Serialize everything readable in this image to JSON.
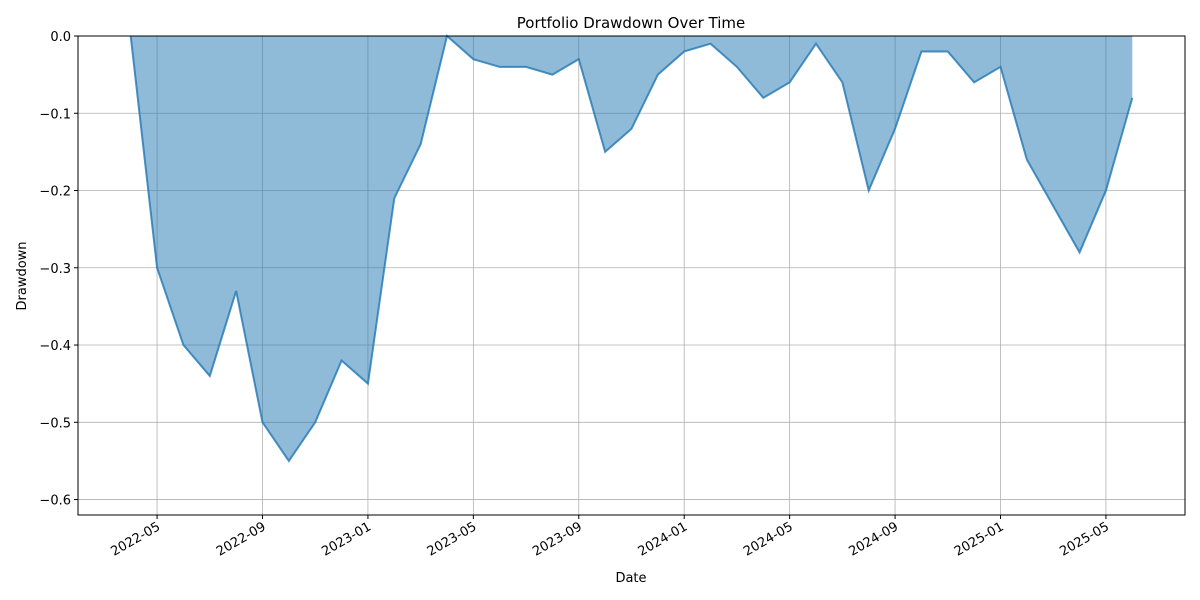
{
  "chart_data": {
    "type": "area",
    "title": "Portfolio Drawdown Over Time",
    "x_label": "Date",
    "y_label": "Drawdown",
    "x": [
      "2022-04",
      "2022-05",
      "2022-06",
      "2022-07",
      "2022-08",
      "2022-09",
      "2022-10",
      "2022-11",
      "2022-12",
      "2023-01",
      "2023-02",
      "2023-03",
      "2023-04",
      "2023-05",
      "2023-06",
      "2023-07",
      "2023-08",
      "2023-09",
      "2023-10",
      "2023-11",
      "2023-12",
      "2024-01",
      "2024-02",
      "2024-03",
      "2024-04",
      "2024-05",
      "2024-06",
      "2024-07",
      "2024-08",
      "2024-09",
      "2024-10",
      "2024-11",
      "2024-12",
      "2025-01",
      "2025-02",
      "2025-03",
      "2025-04",
      "2025-05",
      "2025-06"
    ],
    "values": [
      0,
      -0.3,
      -0.4,
      -0.44,
      -0.33,
      -0.5,
      -0.55,
      -0.5,
      -0.42,
      -0.45,
      -0.21,
      -0.14,
      0,
      -0.03,
      -0.04,
      -0.04,
      -0.05,
      -0.03,
      -0.15,
      -0.12,
      -0.05,
      -0.02,
      -0.01,
      -0.04,
      -0.08,
      -0.06,
      -0.01,
      -0.06,
      -0.2,
      -0.12,
      -0.02,
      -0.02,
      -0.06,
      -0.04,
      -0.16,
      -0.22,
      -0.28,
      -0.2,
      -0.08
    ],
    "color": "#1f77b4",
    "xlim": [
      "2022-02",
      "2025-08"
    ],
    "xticks": [
      "2022-05",
      "2022-09",
      "2023-01",
      "2023-05",
      "2023-09",
      "2024-01",
      "2024-05",
      "2024-09",
      "2025-01",
      "2025-05"
    ],
    "ylim": [
      -0.62,
      0
    ],
    "yticks": [
      {
        "value": -0.6,
        "label": "−0.6"
      },
      {
        "value": -0.5,
        "label": "−0.5"
      },
      {
        "value": -0.4,
        "label": "−0.4"
      },
      {
        "value": -0.3,
        "label": "−0.3"
      },
      {
        "value": -0.2,
        "label": "−0.2"
      },
      {
        "value": -0.1,
        "label": "−0.1"
      },
      {
        "value": 0,
        "label": "0.0"
      }
    ],
    "grid": true
  }
}
